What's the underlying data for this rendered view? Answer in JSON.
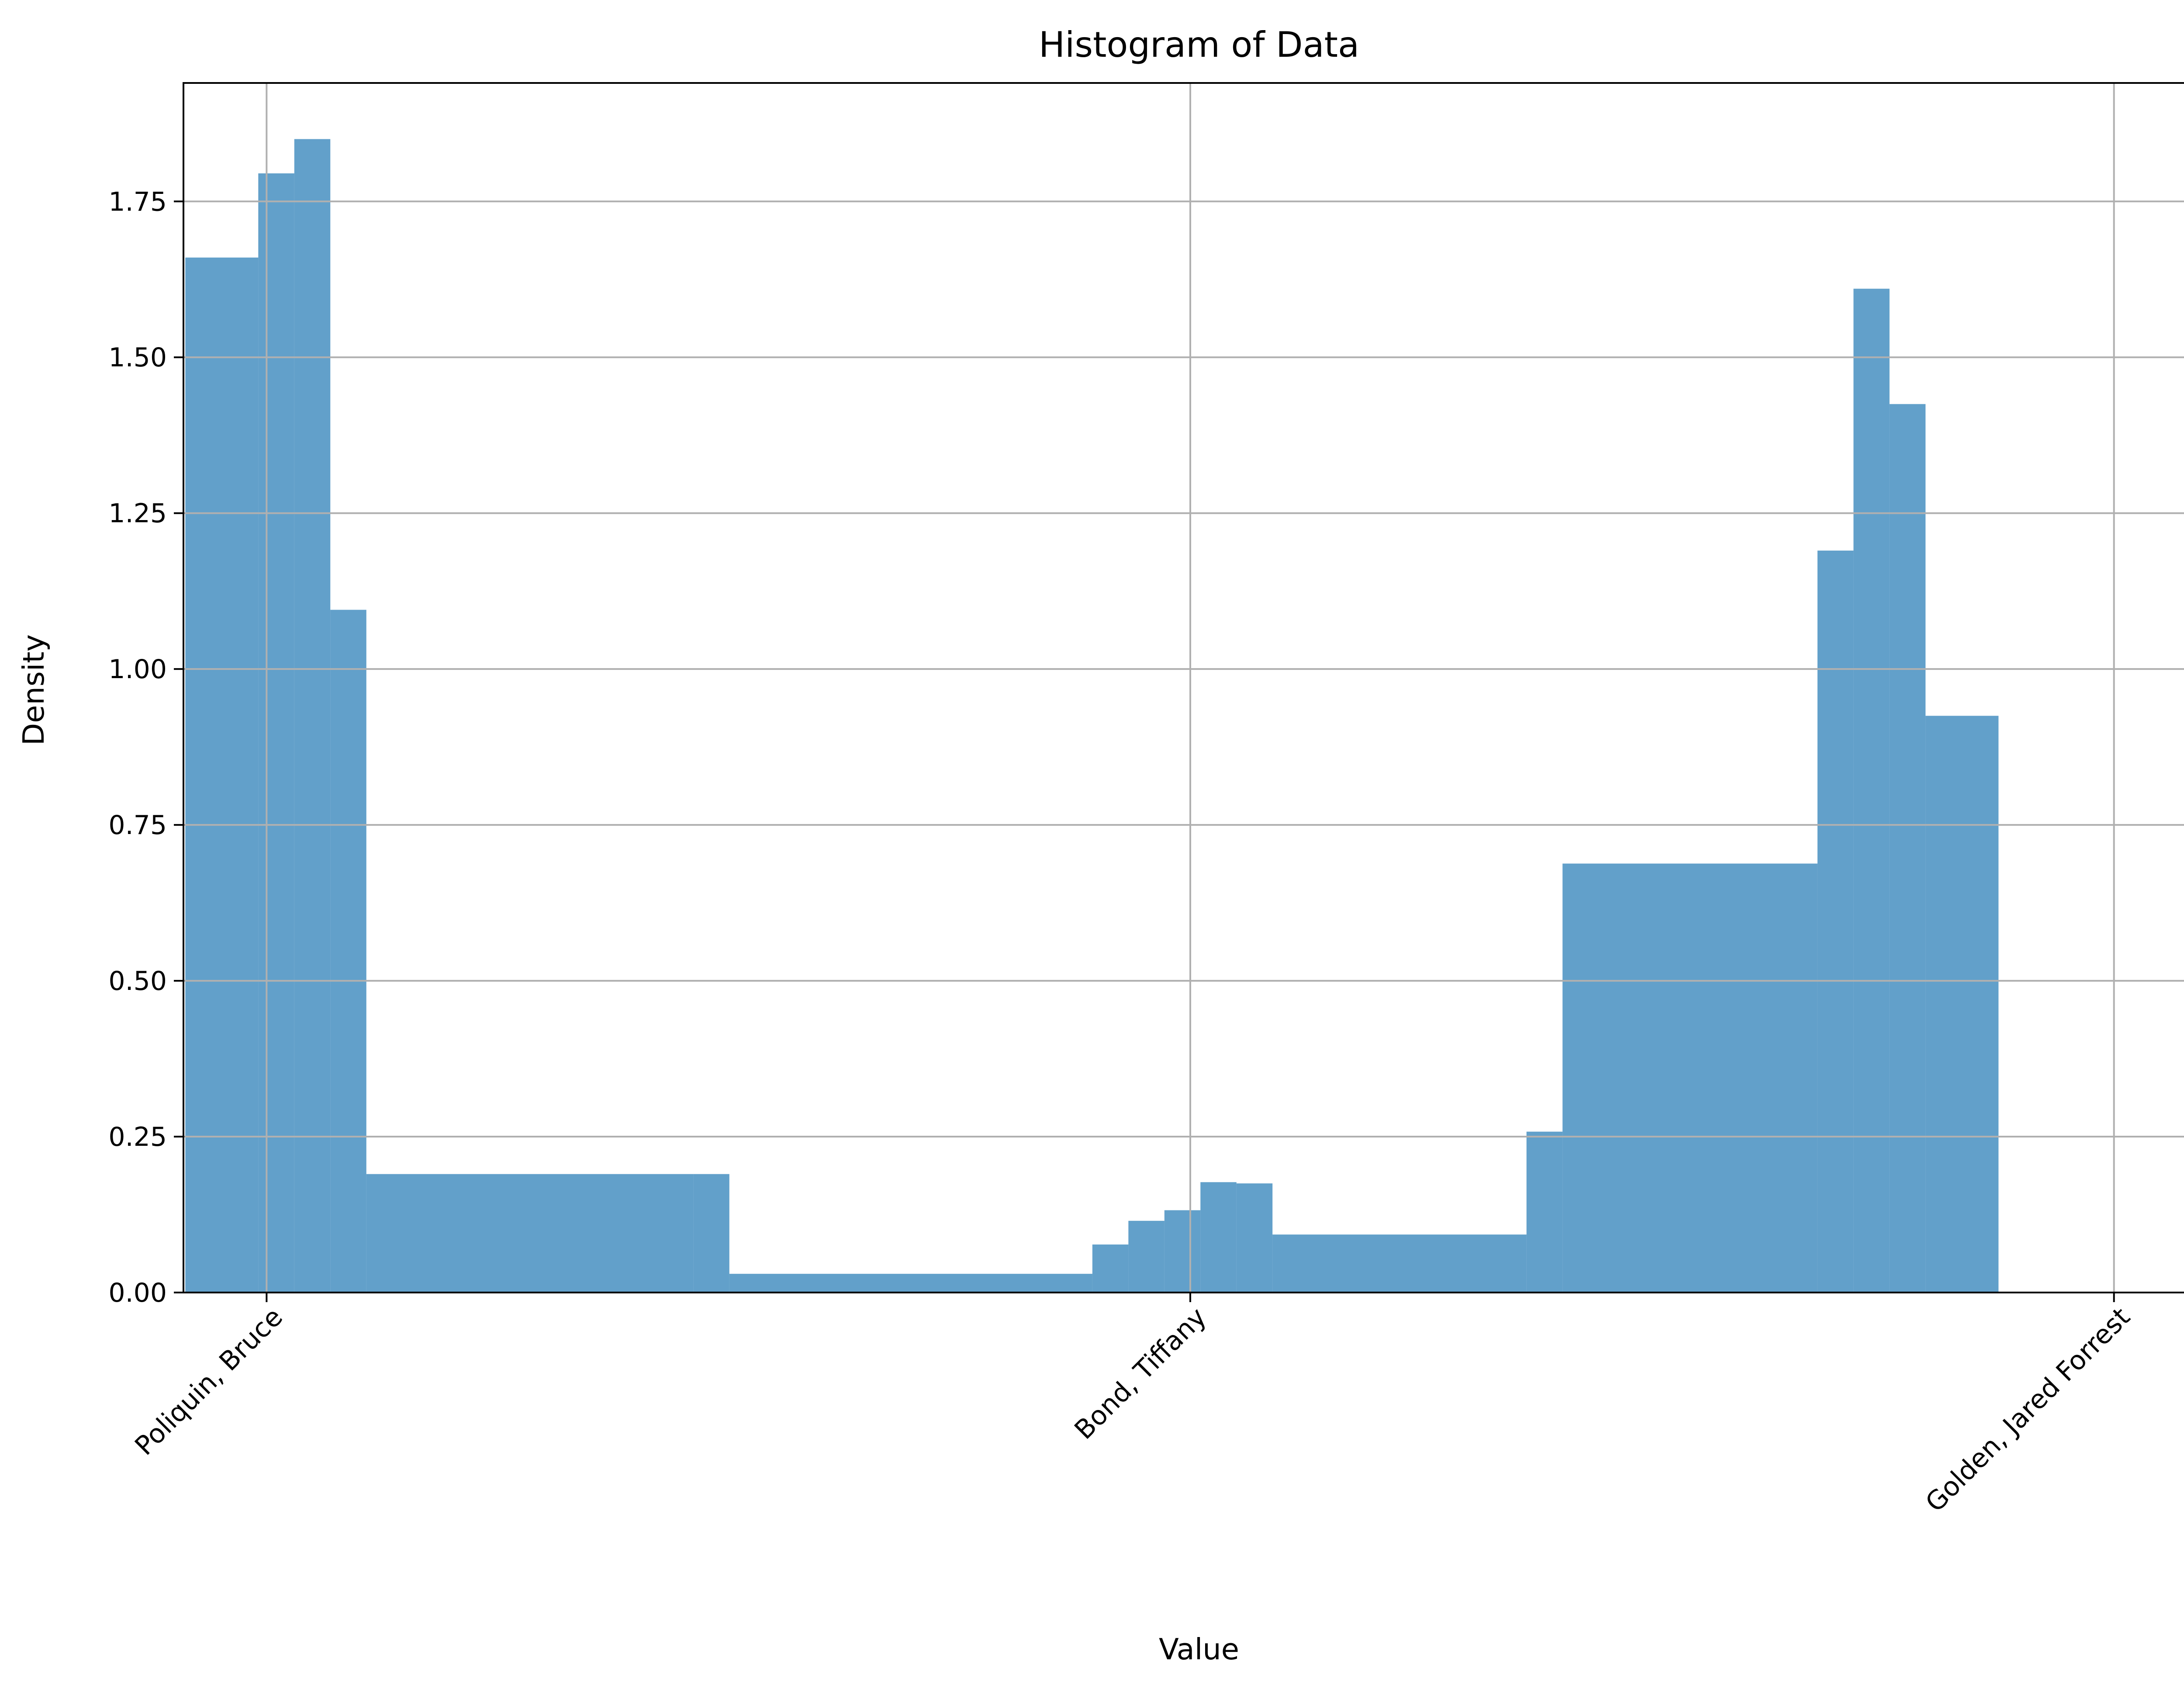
{
  "chart_data": {
    "type": "bar",
    "title": "Histogram of Data",
    "xlabel": "Value",
    "ylabel": "Density",
    "xlim": [
      -0.09,
      2.09
    ],
    "ylim": [
      0,
      1.94
    ],
    "grid": true,
    "legend": "none",
    "bar_color": "#1f77b4",
    "bar_opacity": 0.7,
    "x_ticks": [
      {
        "value": 0,
        "label": "Poliquin, Bruce"
      },
      {
        "value": 1,
        "label": "Bond, Tiffany"
      },
      {
        "value": 2,
        "label": "Golden, Jared Forrest"
      }
    ],
    "y_ticks": [
      {
        "value": 0,
        "label": "0.00"
      },
      {
        "value": 0.25,
        "label": "0.25"
      },
      {
        "value": 0.5,
        "label": "0.50"
      },
      {
        "value": 0.75,
        "label": "0.75"
      },
      {
        "value": 1.0,
        "label": "1.00"
      },
      {
        "value": 1.25,
        "label": "1.25"
      },
      {
        "value": 1.5,
        "label": "1.50"
      },
      {
        "value": 1.75,
        "label": "1.75"
      }
    ],
    "bins": [
      {
        "x0": -0.088,
        "x1": -0.009,
        "density": 1.66
      },
      {
        "x0": -0.009,
        "x1": 0.03,
        "density": 1.795
      },
      {
        "x0": 0.03,
        "x1": 0.069,
        "density": 1.85
      },
      {
        "x0": 0.069,
        "x1": 0.108,
        "density": 1.095
      },
      {
        "x0": 0.108,
        "x1": 0.462,
        "density": 0.19
      },
      {
        "x0": 0.462,
        "x1": 0.501,
        "density": 0.19
      },
      {
        "x0": 0.501,
        "x1": 0.894,
        "density": 0.03
      },
      {
        "x0": 0.894,
        "x1": 0.933,
        "density": 0.077
      },
      {
        "x0": 0.933,
        "x1": 0.972,
        "density": 0.115
      },
      {
        "x0": 0.972,
        "x1": 1.011,
        "density": 0.132
      },
      {
        "x0": 1.011,
        "x1": 1.05,
        "density": 0.177
      },
      {
        "x0": 1.05,
        "x1": 1.089,
        "density": 0.175
      },
      {
        "x0": 1.089,
        "x1": 1.364,
        "density": 0.093
      },
      {
        "x0": 1.364,
        "x1": 1.403,
        "density": 0.258
      },
      {
        "x0": 1.403,
        "x1": 1.679,
        "density": 0.688
      },
      {
        "x0": 1.679,
        "x1": 1.718,
        "density": 1.19
      },
      {
        "x0": 1.718,
        "x1": 1.757,
        "density": 1.61
      },
      {
        "x0": 1.757,
        "x1": 1.796,
        "density": 1.425
      },
      {
        "x0": 1.796,
        "x1": 1.875,
        "density": 0.925
      }
    ]
  }
}
